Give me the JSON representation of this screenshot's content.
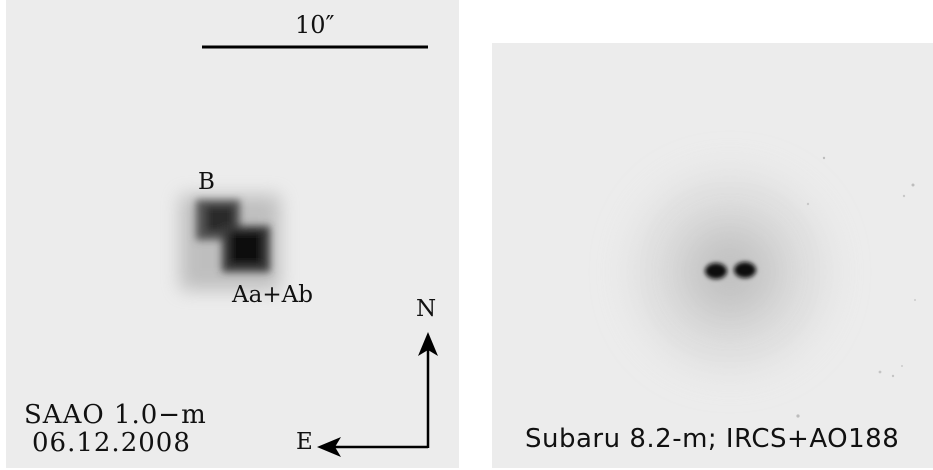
{
  "left_image": {
    "scale_bar_label": "10″",
    "component_b_label": "B",
    "component_a_label": "Aa+Ab",
    "north_label": "N",
    "east_label": "E",
    "telescope_label": "SAAO 1.0−m",
    "date_label": "06.12.2008"
  },
  "right_image": {
    "instrument_label": "Subaru 8.2-m; IRCS+AO188"
  }
}
